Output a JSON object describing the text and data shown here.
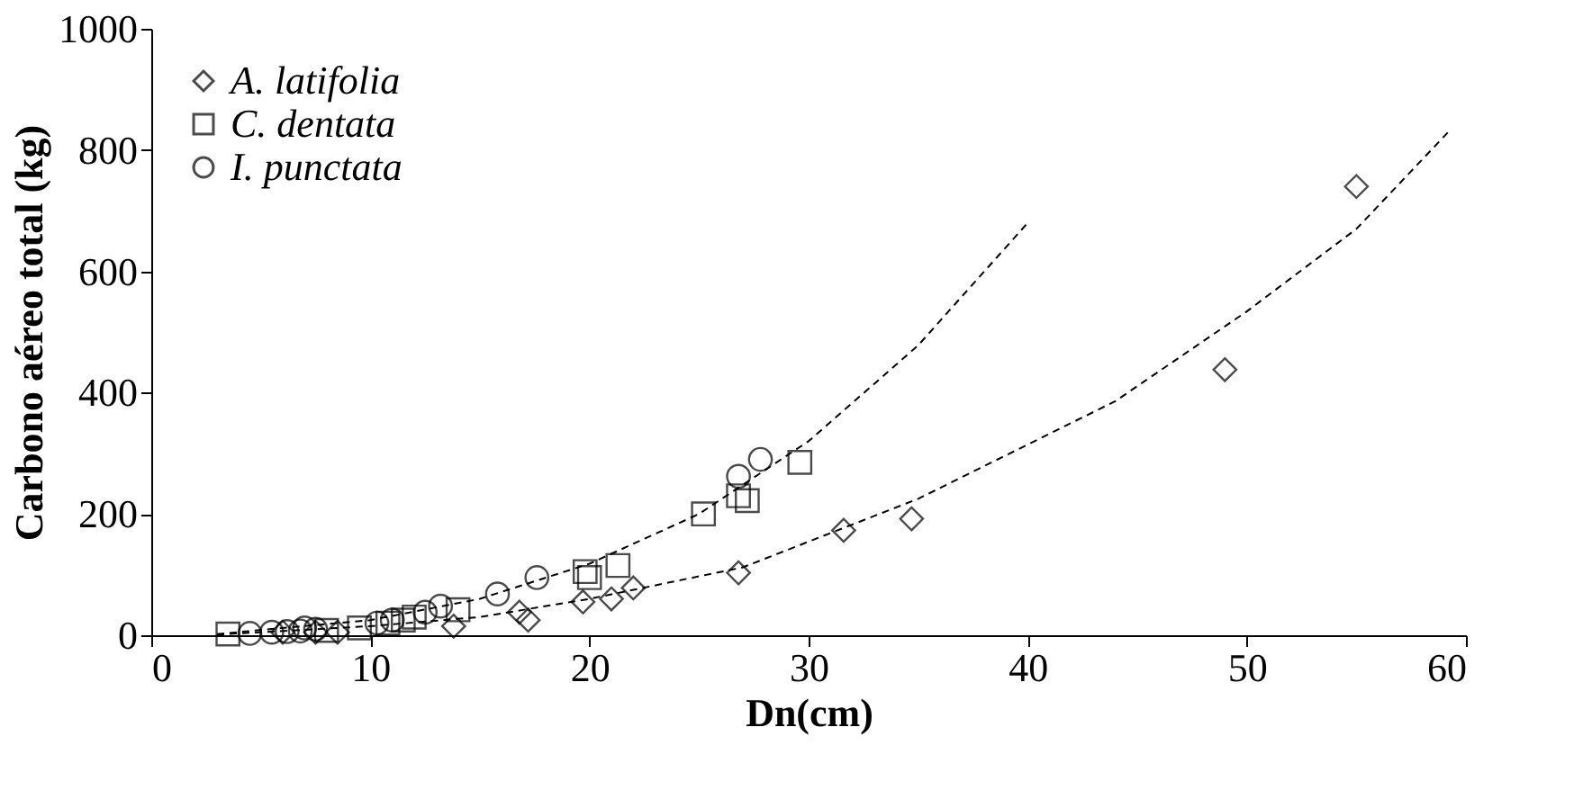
{
  "chart_data": {
    "type": "scatter",
    "xlabel": "Dn(cm)",
    "ylabel": "Carbono aéreo total (kg)",
    "xlim": [
      0,
      60
    ],
    "ylim": [
      0,
      1000
    ],
    "xticks": [
      0,
      10,
      20,
      30,
      40,
      50,
      60
    ],
    "yticks": [
      0,
      200,
      400,
      600,
      800,
      {
        "value": 1000,
        "label": "1000"
      }
    ],
    "grid": false,
    "legend": "top left",
    "series": [
      {
        "name": "A. latifolia",
        "color": "#000000",
        "marker": "diamond",
        "x": [
          6.0,
          7.5,
          8.5,
          13.8,
          16.8,
          17.2,
          19.7,
          21.0,
          22.0,
          26.8,
          31.6,
          34.7,
          49.0,
          55.0
        ],
        "values": [
          5,
          5,
          5,
          15,
          38,
          25,
          55,
          60,
          78,
          103,
          173,
          192,
          438,
          740
        ]
      },
      {
        "name": "C. dentata",
        "color": "#000000",
        "marker": "square",
        "x": [
          3.5,
          8.0,
          9.5,
          10.8,
          11.5,
          12.0,
          14.0,
          19.8,
          20.0,
          21.3,
          25.2,
          26.8,
          27.2,
          29.6
        ],
        "values": [
          2,
          8,
          12,
          20,
          25,
          30,
          42,
          105,
          95,
          115,
          200,
          230,
          222,
          285
        ]
      },
      {
        "name": "I. punctata",
        "color": "#000000",
        "marker": "circle",
        "x": [
          4.5,
          5.5,
          6.2,
          6.8,
          7.0,
          7.5,
          10.3,
          11.0,
          12.5,
          13.2,
          15.8,
          17.6,
          26.8,
          27.8
        ],
        "values": [
          3,
          5,
          6,
          7,
          12,
          10,
          20,
          25,
          38,
          48,
          68,
          95,
          262,
          290
        ]
      },
      {
        "type": "line",
        "line_style": "dashed",
        "color": "#000000",
        "x": [
          3,
          10,
          15,
          20,
          25,
          30,
          35,
          40
        ],
        "values": [
          2,
          25,
          60,
          118,
          200,
          320,
          478,
          680
        ]
      },
      {
        "type": "line",
        "line_style": "dashed",
        "color": "#000000",
        "x": [
          3,
          10,
          15,
          20,
          27,
          35,
          44,
          50,
          55,
          59.2
        ],
        "values": [
          1,
          15,
          30,
          60,
          112,
          225,
          386,
          534,
          670,
          830
        ]
      }
    ]
  }
}
